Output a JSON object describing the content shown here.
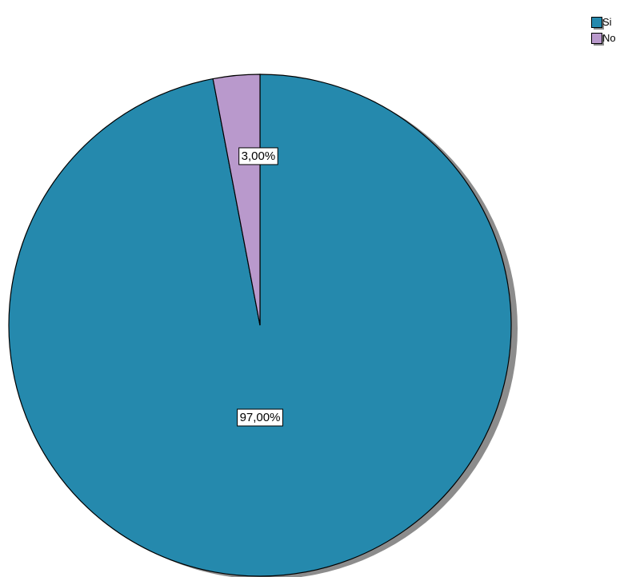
{
  "chart_data": {
    "type": "pie",
    "title": "",
    "slices": [
      {
        "label": "Si",
        "value": 97.0,
        "display": "97,00%",
        "color": "#2589ad"
      },
      {
        "label": "No",
        "value": 3.0,
        "display": "3,00%",
        "color": "#b999cc"
      }
    ],
    "legend": {
      "position": "top-right",
      "entries": [
        "Si",
        "No"
      ]
    },
    "start_angle_deg": 0,
    "direction": "clockwise"
  }
}
